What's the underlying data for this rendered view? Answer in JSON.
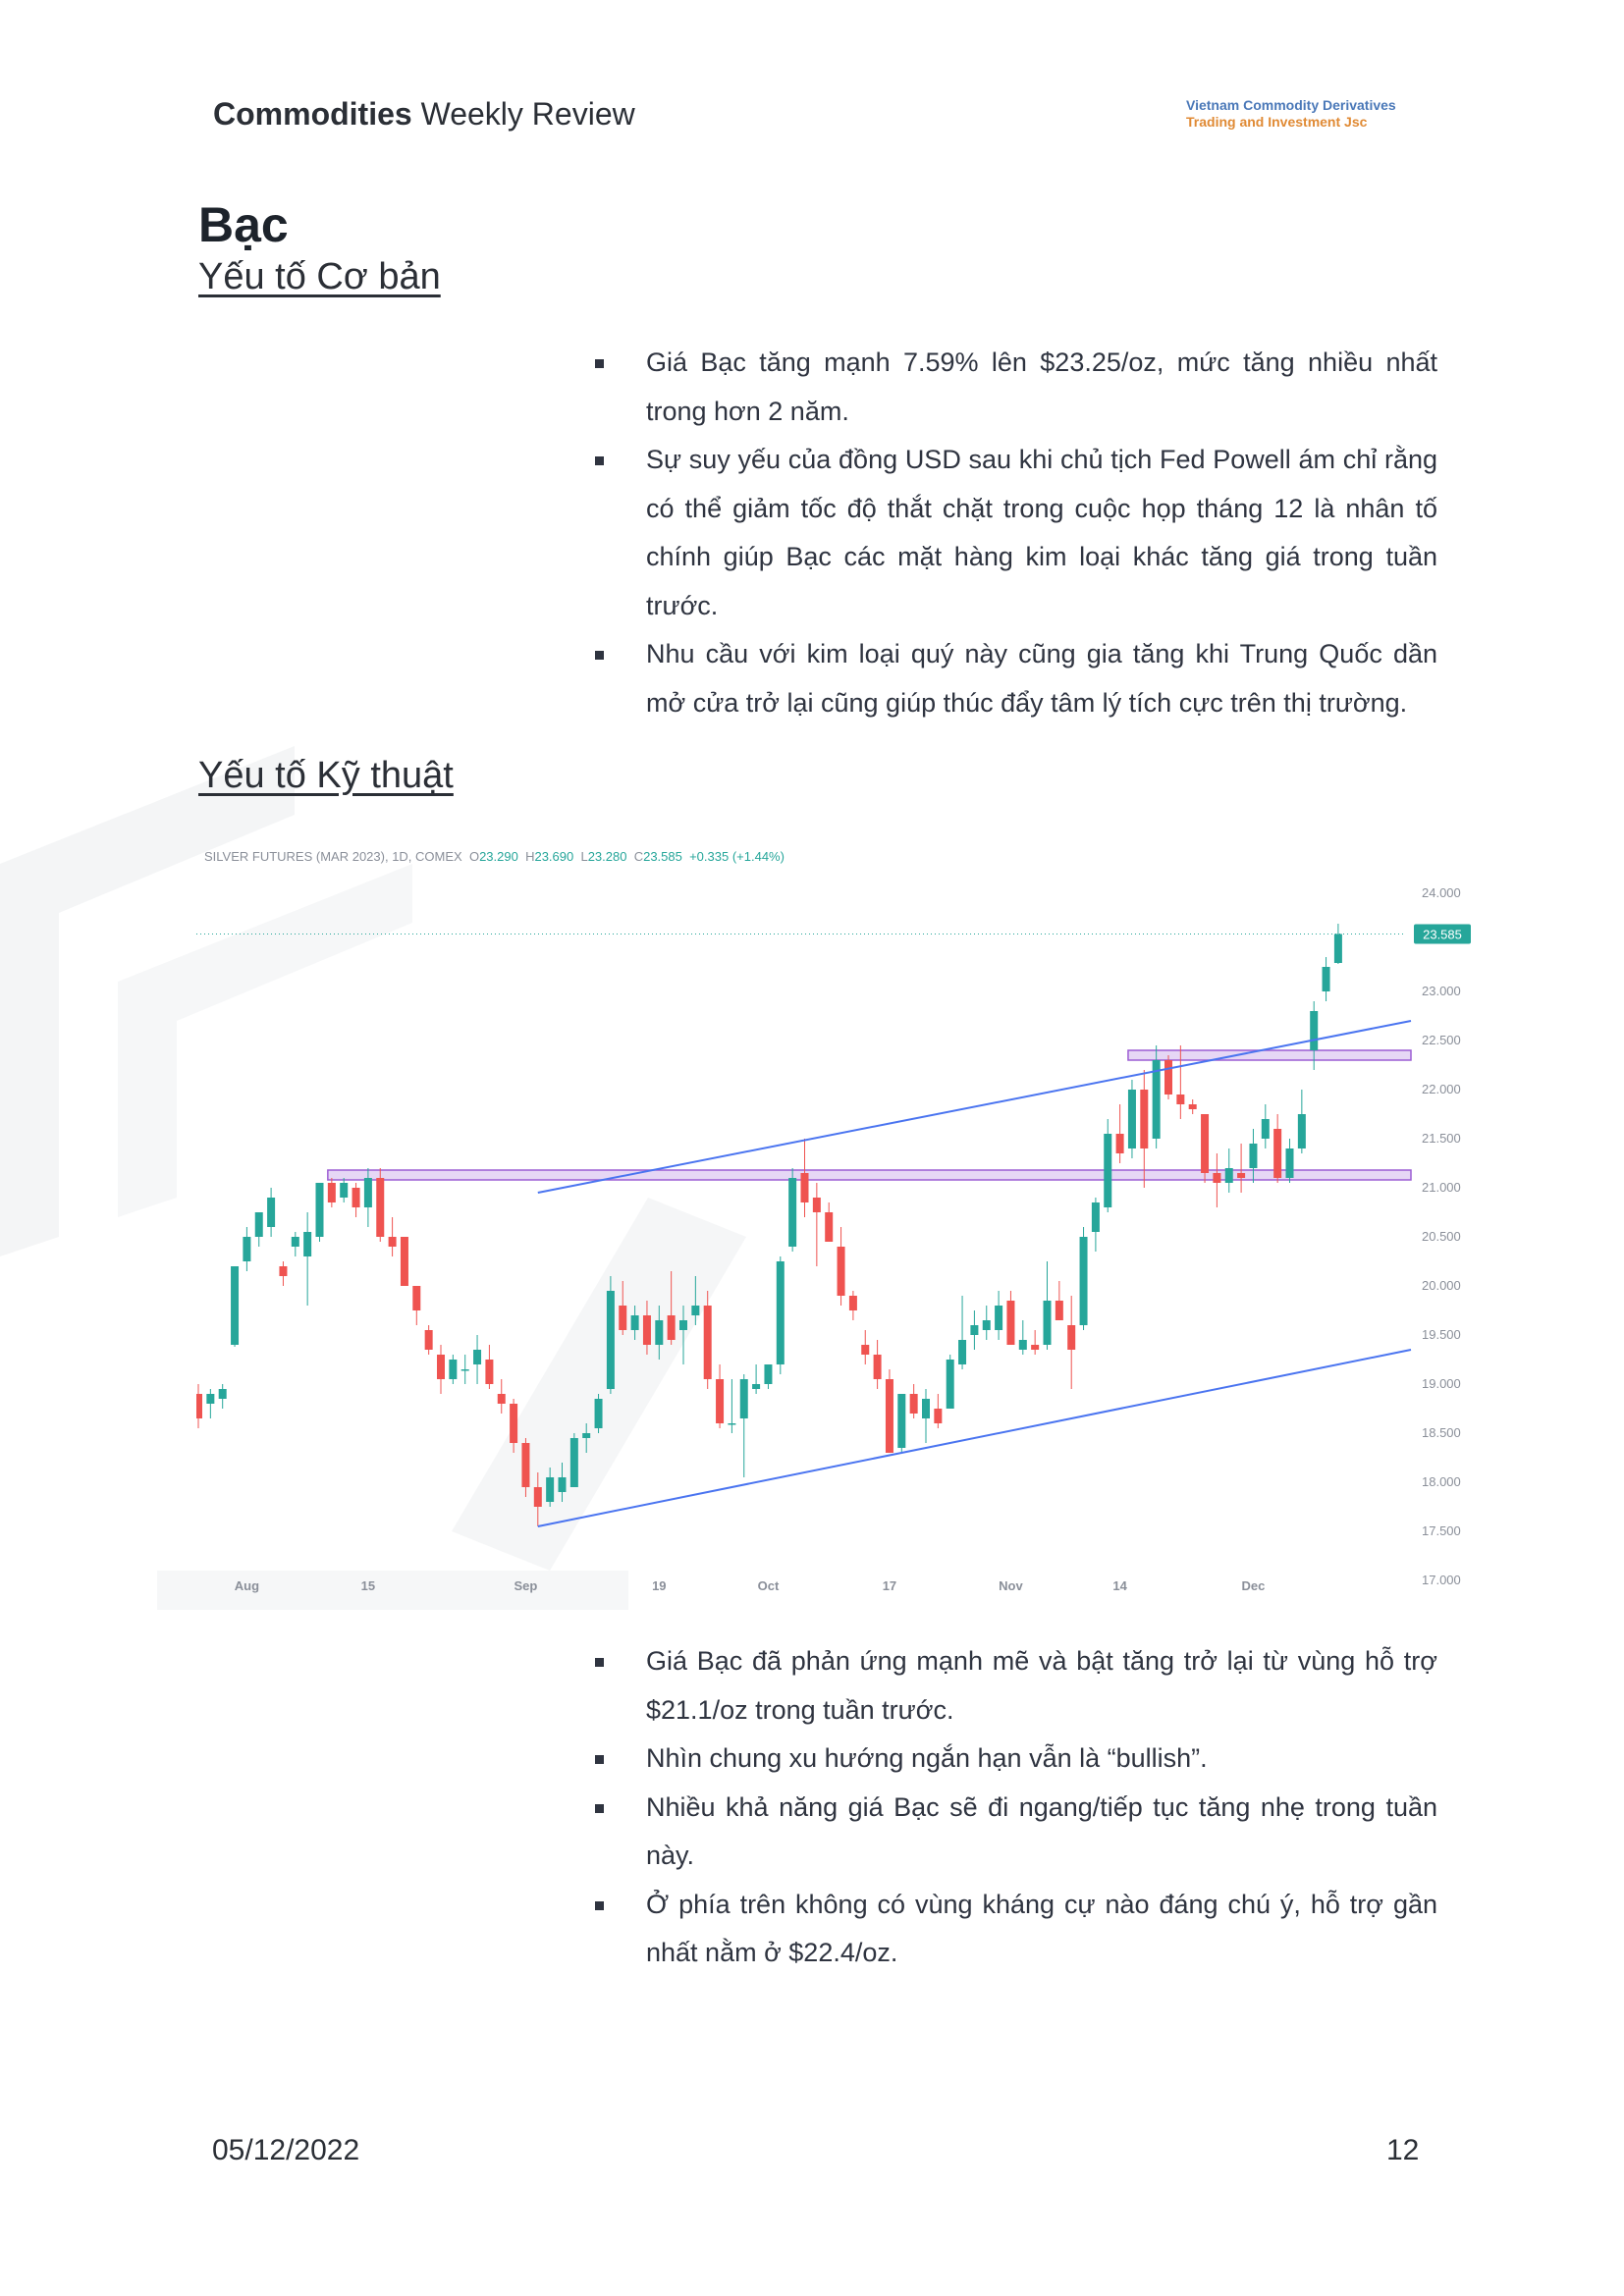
{
  "header": {
    "title_bold": "Commodities",
    "title_rest": "Weekly Review",
    "company_line1": "Vietnam Commodity Derivatives",
    "company_line2": "Trading and Investment Jsc"
  },
  "page_title": "Bạc",
  "fundamentals": {
    "heading": "Yếu tố Cơ bản",
    "bullets": [
      "Giá Bạc tăng mạnh 7.59% lên $23.25/oz, mức tăng nhiều nhất trong hơn 2 năm.",
      "Sự suy yếu của đồng USD sau khi chủ tịch Fed Powell ám chỉ rằng có thể giảm tốc độ thắt chặt trong cuộc họp tháng 12 là nhân tố chính giúp Bạc các mặt hàng kim loại khác tăng giá trong tuần trước.",
      "Nhu cầu với kim loại quý này cũng gia tăng khi Trung Quốc dần mở cửa trở lại cũng giúp thúc đẩy tâm lý tích cực trên thị trường."
    ]
  },
  "technicals": {
    "heading": "Yếu tố Kỹ thuật",
    "bullets": [
      "Giá Bạc đã phản ứng mạnh mẽ và bật tăng trở lại từ vùng hỗ trợ $21.1/oz trong tuần trước.",
      "Nhìn chung xu hướng ngắn hạn vẫn là “bullish”.",
      "Nhiều khả năng giá Bạc sẽ đi ngang/tiếp tục tăng nhẹ trong tuần này.",
      "Ở phía trên không có vùng kháng cự nào đáng chú ý, hỗ trợ gần nhất nằm ở $22.4/oz."
    ]
  },
  "chart_header": {
    "symbol": "SILVER FUTURES (MAR 2023), 1D, COMEX",
    "o_label": "O",
    "o": "23.290",
    "h_label": "H",
    "h": "23.690",
    "l_label": "L",
    "l": "23.280",
    "c_label": "C",
    "c": "23.585",
    "change": "+0.335 (+1.44%)"
  },
  "chart_data": {
    "type": "candlestick",
    "ylim": [
      17.0,
      24.0
    ],
    "y_ticks": [
      "24.000",
      "23.000",
      "22.500",
      "22.000",
      "21.500",
      "21.000",
      "20.500",
      "20.000",
      "19.500",
      "19.000",
      "18.500",
      "18.000",
      "17.500",
      "17.000"
    ],
    "x_ticks": [
      {
        "label": "Aug",
        "index": 4
      },
      {
        "label": "15",
        "index": 14
      },
      {
        "label": "Sep",
        "index": 27
      },
      {
        "label": "19",
        "index": 38
      },
      {
        "label": "Oct",
        "index": 47
      },
      {
        "label": "17",
        "index": 57
      },
      {
        "label": "Nov",
        "index": 67
      },
      {
        "label": "14",
        "index": 76
      },
      {
        "label": "Dec",
        "index": 87
      }
    ],
    "last_price_label": "23.585",
    "last_price": 23.585,
    "candles": [
      [
        18.9,
        19.0,
        18.55,
        18.65
      ],
      [
        18.8,
        18.95,
        18.65,
        18.9
      ],
      [
        18.85,
        19.0,
        18.75,
        18.95
      ],
      [
        19.4,
        20.2,
        19.38,
        20.2
      ],
      [
        20.25,
        20.6,
        20.15,
        20.5
      ],
      [
        20.5,
        20.75,
        20.4,
        20.75
      ],
      [
        20.6,
        21.0,
        20.5,
        20.9
      ],
      [
        20.2,
        20.25,
        20.0,
        20.1
      ],
      [
        20.4,
        20.55,
        20.3,
        20.5
      ],
      [
        20.3,
        20.75,
        19.8,
        20.55
      ],
      [
        20.5,
        21.05,
        20.45,
        21.05
      ],
      [
        21.05,
        21.1,
        20.8,
        20.85
      ],
      [
        20.9,
        21.1,
        20.85,
        21.05
      ],
      [
        21.0,
        21.05,
        20.7,
        20.8
      ],
      [
        20.8,
        21.2,
        20.6,
        21.1
      ],
      [
        21.1,
        21.2,
        20.45,
        20.5
      ],
      [
        20.5,
        20.7,
        20.3,
        20.4
      ],
      [
        20.5,
        20.5,
        20.0,
        20.0
      ],
      [
        20.0,
        20.0,
        19.6,
        19.75
      ],
      [
        19.55,
        19.6,
        19.3,
        19.35
      ],
      [
        19.3,
        19.4,
        18.9,
        19.05
      ],
      [
        19.05,
        19.3,
        19.0,
        19.25
      ],
      [
        19.15,
        19.3,
        19.0,
        19.15
      ],
      [
        19.2,
        19.5,
        19.0,
        19.35
      ],
      [
        19.25,
        19.4,
        18.95,
        19.0
      ],
      [
        18.9,
        19.05,
        18.7,
        18.8
      ],
      [
        18.8,
        18.85,
        18.3,
        18.4
      ],
      [
        18.4,
        18.45,
        17.85,
        17.95
      ],
      [
        17.95,
        18.1,
        17.55,
        17.75
      ],
      [
        17.8,
        18.15,
        17.75,
        18.05
      ],
      [
        17.9,
        18.2,
        17.8,
        18.05
      ],
      [
        17.95,
        18.5,
        17.95,
        18.45
      ],
      [
        18.45,
        18.6,
        18.3,
        18.5
      ],
      [
        18.55,
        18.9,
        18.5,
        18.85
      ],
      [
        18.95,
        20.1,
        18.9,
        19.95
      ],
      [
        19.8,
        20.05,
        19.5,
        19.55
      ],
      [
        19.55,
        19.8,
        19.45,
        19.7
      ],
      [
        19.7,
        19.85,
        19.3,
        19.4
      ],
      [
        19.4,
        19.8,
        19.25,
        19.65
      ],
      [
        19.7,
        20.15,
        19.4,
        19.45
      ],
      [
        19.55,
        19.8,
        19.2,
        19.65
      ],
      [
        19.7,
        20.1,
        19.6,
        19.8
      ],
      [
        19.8,
        19.95,
        18.95,
        19.05
      ],
      [
        19.05,
        19.2,
        18.55,
        18.6
      ],
      [
        18.6,
        19.05,
        18.5,
        18.6
      ],
      [
        18.65,
        19.1,
        18.05,
        19.05
      ],
      [
        18.95,
        19.2,
        18.9,
        19.0
      ],
      [
        19.0,
        19.2,
        18.95,
        19.2
      ],
      [
        19.2,
        20.3,
        19.1,
        20.25
      ],
      [
        20.4,
        21.2,
        20.35,
        21.1
      ],
      [
        21.15,
        21.5,
        20.7,
        20.85
      ],
      [
        20.9,
        21.05,
        20.2,
        20.75
      ],
      [
        20.75,
        20.85,
        20.45,
        20.45
      ],
      [
        20.4,
        20.6,
        19.8,
        19.9
      ],
      [
        19.9,
        19.95,
        19.65,
        19.75
      ],
      [
        19.4,
        19.55,
        19.2,
        19.3
      ],
      [
        19.3,
        19.45,
        18.95,
        19.05
      ],
      [
        19.05,
        19.15,
        18.3,
        18.3
      ],
      [
        18.35,
        18.9,
        18.3,
        18.9
      ],
      [
        18.9,
        19.0,
        18.65,
        18.7
      ],
      [
        18.65,
        18.95,
        18.4,
        18.85
      ],
      [
        18.75,
        18.9,
        18.55,
        18.6
      ],
      [
        18.75,
        19.3,
        18.75,
        19.25
      ],
      [
        19.2,
        19.9,
        19.15,
        19.45
      ],
      [
        19.5,
        19.75,
        19.35,
        19.6
      ],
      [
        19.55,
        19.8,
        19.45,
        19.65
      ],
      [
        19.55,
        19.95,
        19.45,
        19.8
      ],
      [
        19.85,
        19.95,
        19.4,
        19.4
      ],
      [
        19.35,
        19.65,
        19.3,
        19.45
      ],
      [
        19.4,
        19.55,
        19.3,
        19.35
      ],
      [
        19.4,
        20.25,
        19.35,
        19.85
      ],
      [
        19.85,
        20.05,
        19.65,
        19.65
      ],
      [
        19.6,
        19.9,
        18.95,
        19.35
      ],
      [
        19.6,
        20.6,
        19.55,
        20.5
      ],
      [
        20.55,
        20.9,
        20.35,
        20.85
      ],
      [
        20.8,
        21.7,
        20.75,
        21.55
      ],
      [
        21.55,
        21.85,
        21.25,
        21.35
      ],
      [
        21.4,
        22.1,
        21.3,
        22.0
      ],
      [
        22.0,
        22.2,
        21.0,
        21.4
      ],
      [
        21.5,
        22.45,
        21.4,
        22.3
      ],
      [
        22.3,
        22.35,
        21.9,
        21.95
      ],
      [
        21.95,
        22.45,
        21.7,
        21.85
      ],
      [
        21.85,
        21.9,
        21.75,
        21.8
      ],
      [
        21.75,
        21.75,
        21.05,
        21.15
      ],
      [
        21.15,
        21.35,
        20.8,
        21.05
      ],
      [
        21.05,
        21.4,
        20.95,
        21.2
      ],
      [
        21.15,
        21.45,
        20.95,
        21.1
      ],
      [
        21.2,
        21.6,
        21.05,
        21.45
      ],
      [
        21.5,
        21.85,
        21.4,
        21.7
      ],
      [
        21.6,
        21.75,
        21.05,
        21.1
      ],
      [
        21.1,
        21.5,
        21.05,
        21.4
      ],
      [
        21.4,
        22.0,
        21.35,
        21.75
      ],
      [
        22.4,
        22.9,
        22.2,
        22.8
      ],
      [
        23.0,
        23.35,
        22.9,
        23.25
      ],
      [
        23.29,
        23.69,
        23.28,
        23.585
      ]
    ],
    "trendlines": [
      {
        "from": {
          "index": 28,
          "price": 20.95
        },
        "to": {
          "index": 100,
          "price": 22.7
        }
      },
      {
        "from": {
          "index": 28,
          "price": 17.55
        },
        "to": {
          "index": 100,
          "price": 19.35
        }
      }
    ],
    "zones": [
      {
        "from_index": 11,
        "to_index": 100,
        "low": 21.08,
        "high": 21.18
      },
      {
        "from_index": 77,
        "to_index": 100,
        "low": 22.3,
        "high": 22.4
      }
    ],
    "colors": {
      "up": "#26a69a",
      "down": "#ef5350",
      "trendline": "#4a74f0",
      "zone_fill": "#e6d7f5",
      "zone_stroke": "#9c5dd4"
    }
  },
  "footer": {
    "date": "05/12/2022",
    "page": "12"
  }
}
